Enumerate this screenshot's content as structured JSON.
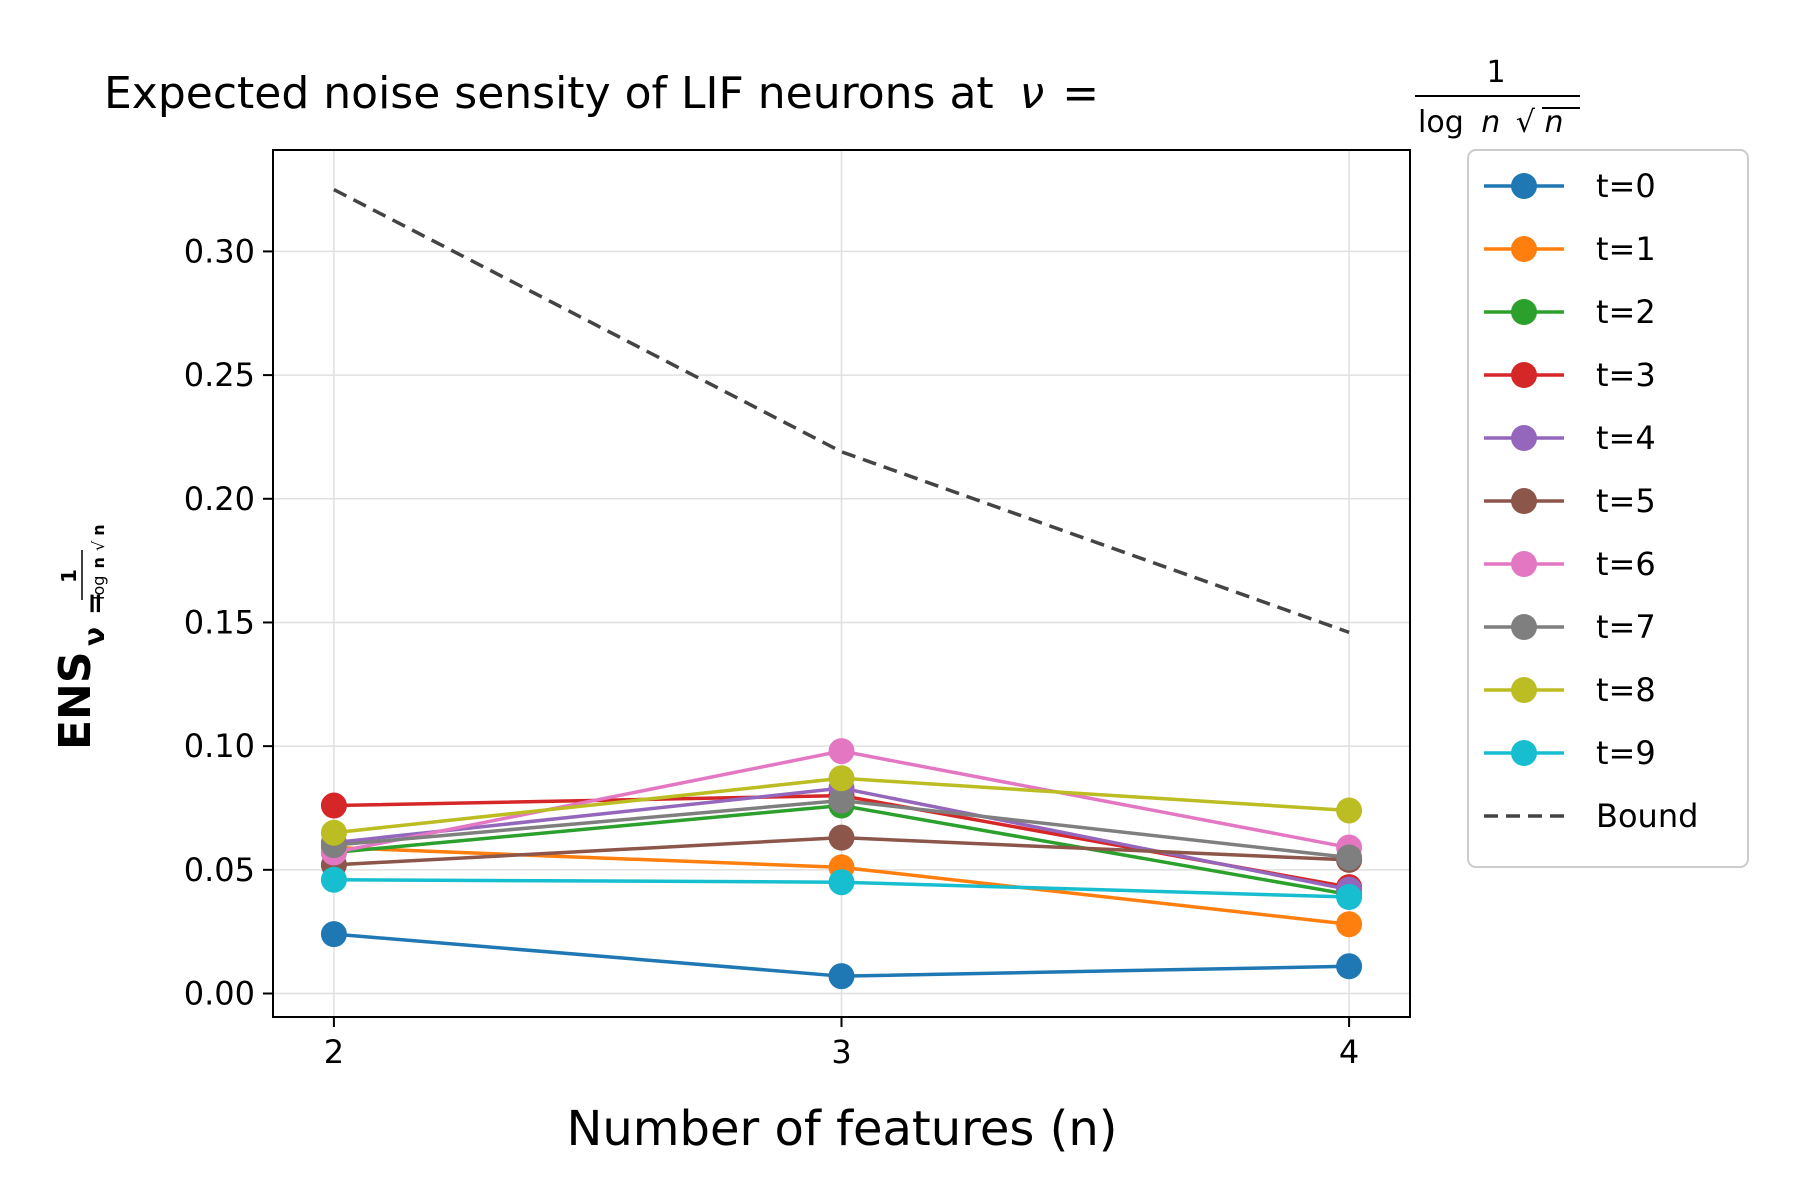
{
  "chart_data": {
    "type": "line",
    "title": "Expected noise sensity of LIF neurons at",
    "title_math": {
      "lhs": "ν",
      "eq": "=",
      "num": "1",
      "den_log": "log",
      "den_n": "n",
      "den_sqrt_n": "n"
    },
    "xlabel": "Number of features (n)",
    "ylabel": "ENS",
    "ylabel_sub": "ν",
    "ylabel_sub_eq": "=",
    "ylabel_sub_num": "1",
    "ylabel_sub_den_log": "log",
    "ylabel_sub_den_n": "n",
    "ylabel_sub_den_sqrt_n": "n",
    "x": [
      2,
      3,
      4
    ],
    "xticks": [
      "2",
      "3",
      "4"
    ],
    "xlim": [
      1.88,
      4.12
    ],
    "ylim": [
      -0.0095,
      0.341
    ],
    "yticks": [
      0.0,
      0.05,
      0.1,
      0.15,
      0.2,
      0.25,
      0.3
    ],
    "ytick_labels": [
      "0.00",
      "0.05",
      "0.10",
      "0.15",
      "0.20",
      "0.25",
      "0.30"
    ],
    "grid": true,
    "legend_position": "outside-right",
    "series": [
      {
        "name": "t=0",
        "color": "#1f77b4",
        "values": [
          0.024,
          0.007,
          0.011
        ]
      },
      {
        "name": "t=1",
        "color": "#ff7f0e",
        "values": [
          0.059,
          0.051,
          0.028
        ]
      },
      {
        "name": "t=2",
        "color": "#2ca02c",
        "values": [
          0.057,
          0.076,
          0.04
        ]
      },
      {
        "name": "t=3",
        "color": "#d62728",
        "values": [
          0.076,
          0.08,
          0.043
        ]
      },
      {
        "name": "t=4",
        "color": "#9467bd",
        "values": [
          0.061,
          0.083,
          0.042
        ]
      },
      {
        "name": "t=5",
        "color": "#8c564b",
        "values": [
          0.052,
          0.063,
          0.054
        ]
      },
      {
        "name": "t=6",
        "color": "#e377c2",
        "values": [
          0.057,
          0.098,
          0.059
        ]
      },
      {
        "name": "t=7",
        "color": "#7f7f7f",
        "values": [
          0.06,
          0.078,
          0.055
        ]
      },
      {
        "name": "t=8",
        "color": "#bcbd22",
        "values": [
          0.065,
          0.087,
          0.074
        ]
      },
      {
        "name": "t=9",
        "color": "#17becf",
        "values": [
          0.046,
          0.045,
          0.039
        ]
      }
    ],
    "bound": {
      "name": "Bound",
      "color": "#444444",
      "style": "dashed",
      "values": [
        0.325,
        0.219,
        0.146
      ]
    }
  }
}
